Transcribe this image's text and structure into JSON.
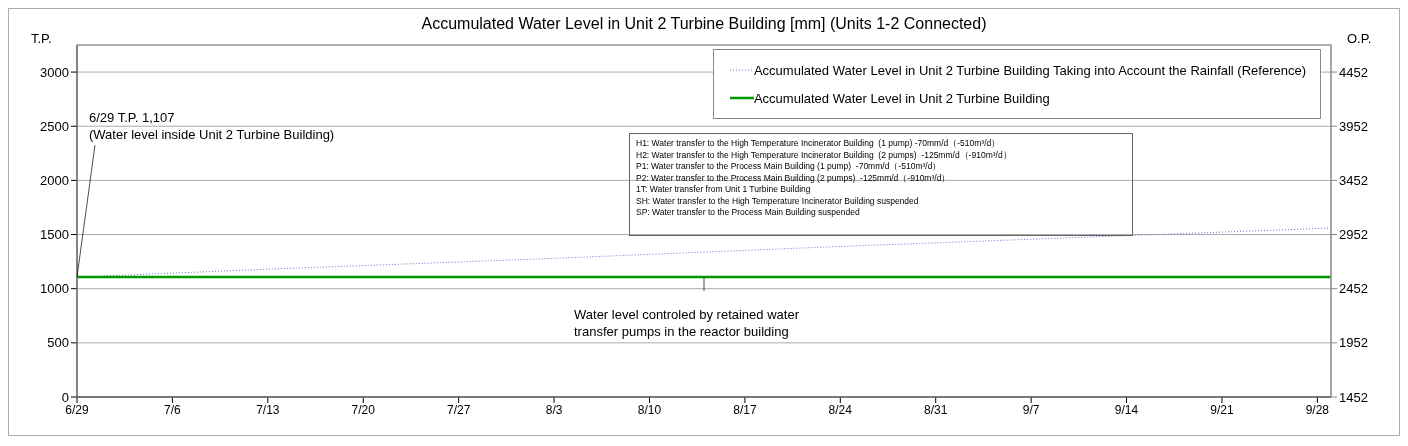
{
  "chart_data": {
    "type": "line",
    "title": "Accumulated Water Level in Unit 2 Turbine Building [mm] (Units 1-2 Connected)",
    "ylabel": "T.P.",
    "y2label": "O.P.",
    "series": [
      {
        "name": "Accumulated Water Level in Unit 2 Turbine Building Taking into Account the Rainfall (Reference)",
        "color": "#7070c8",
        "line_style": "dotted",
        "x": [
          "--06-29",
          "--07-13",
          "--08-03",
          "--08-24",
          "--09-14",
          "--09-29"
        ],
        "values": [
          1107,
          1180,
          1280,
          1390,
          1490,
          1560
        ]
      },
      {
        "name": "Accumulated Water Level in Unit 2 Turbine Building",
        "color": "#009900",
        "line_style": "solid",
        "x": [
          "--06-29",
          "--09-29"
        ],
        "values": [
          1107,
          1107
        ]
      }
    ],
    "xlim": [
      "--06-29",
      "--09-29"
    ],
    "xticks": [
      {
        "value": "--06-29",
        "label": "6/29"
      },
      {
        "value": "--07-06",
        "label": "7/6"
      },
      {
        "value": "--07-13",
        "label": "7/13"
      },
      {
        "value": "--07-20",
        "label": "7/20"
      },
      {
        "value": "--07-27",
        "label": "7/27"
      },
      {
        "value": "--08-03",
        "label": "8/3"
      },
      {
        "value": "--08-10",
        "label": "8/10"
      },
      {
        "value": "--08-17",
        "label": "8/17"
      },
      {
        "value": "--08-24",
        "label": "8/24"
      },
      {
        "value": "--08-31",
        "label": "8/31"
      },
      {
        "value": "--09-07",
        "label": "9/7"
      },
      {
        "value": "--09-14",
        "label": "9/14"
      },
      {
        "value": "--09-21",
        "label": "9/21"
      },
      {
        "value": "--09-28",
        "label": "9/28"
      }
    ],
    "ylim": [
      0,
      3250
    ],
    "yticks": [
      0,
      500,
      1000,
      1500,
      2000,
      2500,
      3000
    ],
    "y2lim": [
      1452,
      4702
    ],
    "y2ticks": [
      1452,
      1952,
      2452,
      2952,
      3452,
      3952,
      4452
    ],
    "grid": "y",
    "legend": "top right",
    "marker": "none",
    "annotations": [
      {
        "text": "6/29 T.P. 1,107\n(Water level inside Unit 2 Turbine Building)",
        "x": "--06-29",
        "y": 1107
      },
      {
        "text": "Water level controled by retained water\ntransfer pumps in the reactor building",
        "x": "--08-14",
        "y": 1107
      },
      "H1: Water transfer to the High Temperature Incinerator Building  (1 pump) -70mm/d（-510m³/d）\nH2: Water transfer to the High Temperature Incinerator Building  (2 pumps)  -125mm/d（-910m³/d）\nP1: Water transfer to the Process Main Building (1 pump)  -70mm/d（-510m³/d）\nP2: Water transfer to the Process Main Building (2 pumps)  -125mm/d（-910m³/d）\n1T: Water transfer from Unit 1 Turbine Building\nSH: Water transfer to the High Temperature Incinerator Building suspended\nSP: Water transfer to the Process Main Building suspended"
    ]
  }
}
